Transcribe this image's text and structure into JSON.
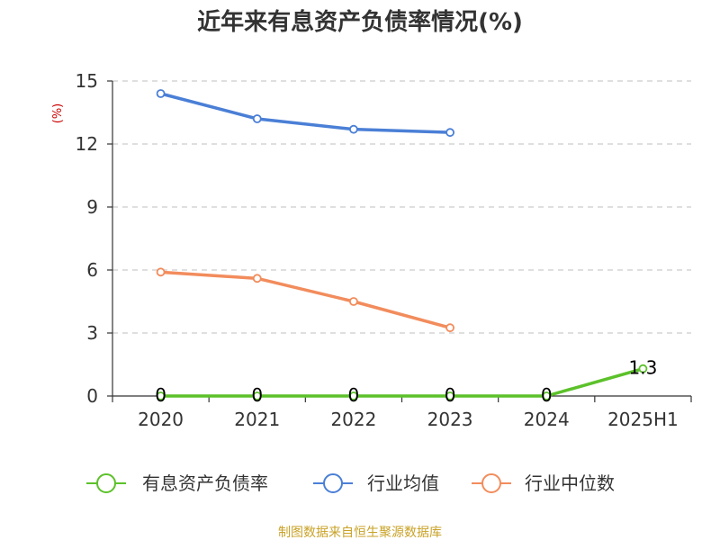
{
  "chart_data": {
    "type": "line",
    "title": "近年来有息资产负债率情况(%)",
    "ylabel": "(%)",
    "xlabel": "",
    "categories": [
      "2020",
      "2021",
      "2022",
      "2023",
      "2024",
      "2025H1"
    ],
    "ylim": [
      0,
      15
    ],
    "yticks": [
      0,
      3,
      6,
      9,
      12,
      15
    ],
    "grid": true,
    "legend_position": "bottom",
    "series": [
      {
        "name": "有息资产负债率",
        "color": "#5cc12a",
        "values": [
          0,
          0,
          0,
          0,
          0,
          1.3
        ],
        "data_labels": [
          "0",
          "0",
          "0",
          "0",
          "0",
          "1.3"
        ]
      },
      {
        "name": "行业均值",
        "color": "#4a7fd6",
        "values": [
          14.4,
          13.2,
          12.7,
          12.55,
          null,
          null
        ]
      },
      {
        "name": "行业中位数",
        "color": "#f28c5c",
        "values": [
          5.9,
          5.6,
          4.5,
          3.25,
          null,
          null
        ]
      }
    ]
  },
  "source": "制图数据来自恒生聚源数据库"
}
